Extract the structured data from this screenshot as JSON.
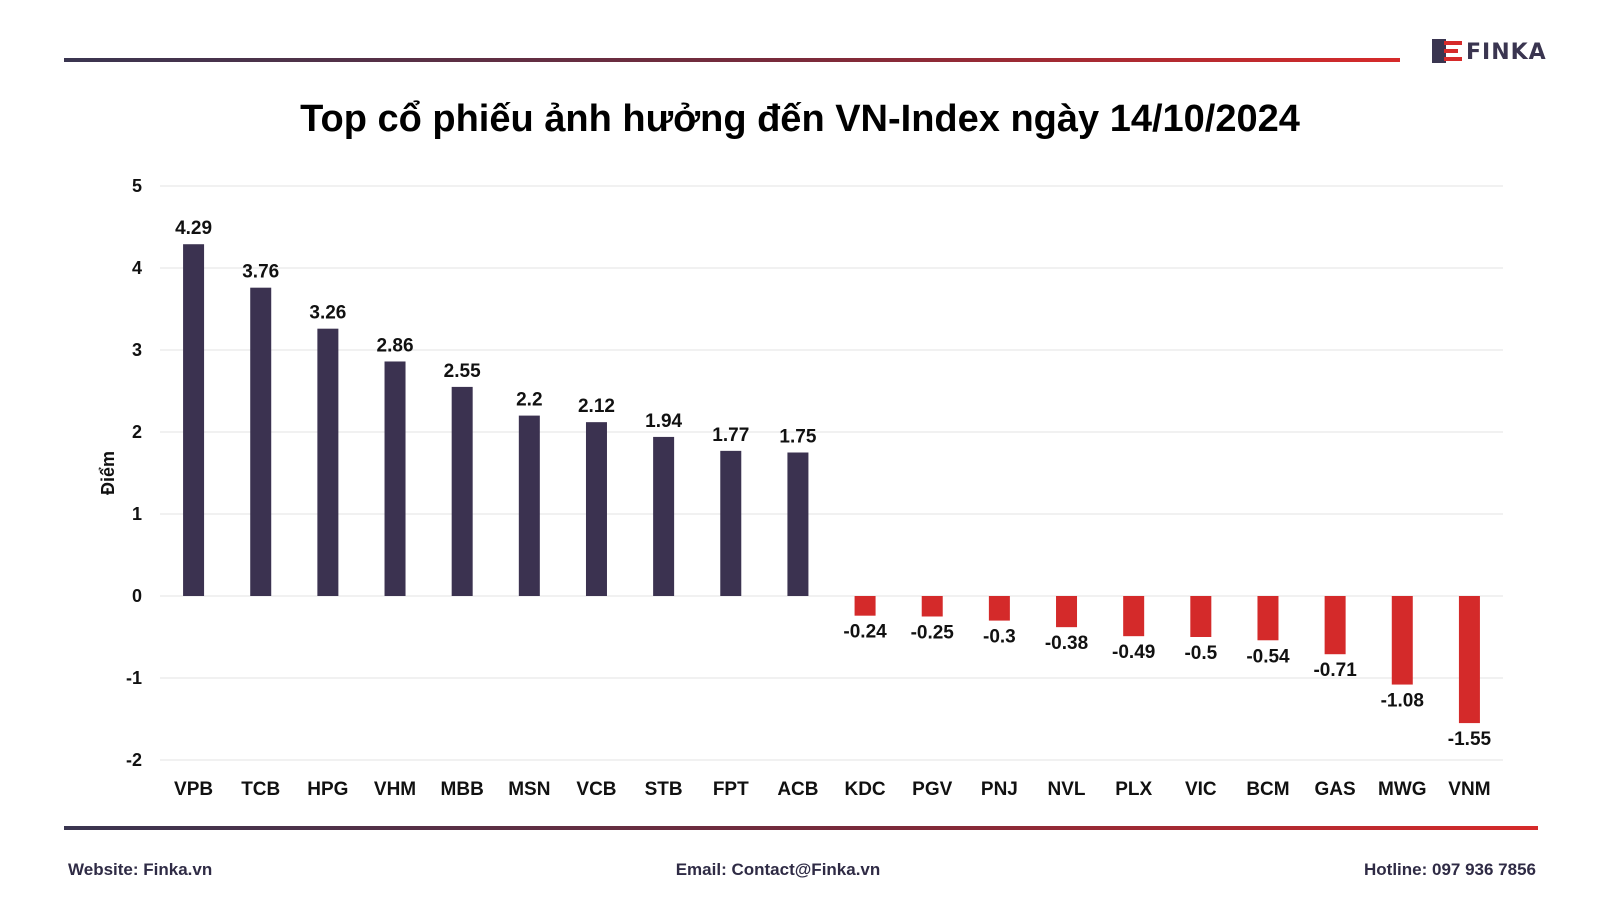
{
  "brand": {
    "name": "FINKA"
  },
  "title": "Top cổ phiếu ảnh hưởng đến VN-Index ngày 14/10/2024",
  "footer": {
    "website": "Website: Finka.vn",
    "email": "Email: Contact@Finka.vn",
    "hotline": "Hotline: 097 936 7856"
  },
  "colors": {
    "positive": "#3b3250",
    "negative": "#d42a2a",
    "brand_dark": "#3a3550",
    "brand_red": "#d62a2a"
  },
  "chart_data": {
    "type": "bar",
    "ylabel": "Điểm",
    "ylim": [
      -2,
      5
    ],
    "yticks": [
      5,
      4,
      3,
      2,
      1,
      0,
      -1,
      -2
    ],
    "grid": true,
    "categories": [
      "VPB",
      "TCB",
      "HPG",
      "VHM",
      "MBB",
      "MSN",
      "VCB",
      "STB",
      "FPT",
      "ACB",
      "KDC",
      "PGV",
      "PNJ",
      "NVL",
      "PLX",
      "VIC",
      "BCM",
      "GAS",
      "MWG",
      "VNM"
    ],
    "values": [
      4.29,
      3.76,
      3.26,
      2.86,
      2.55,
      2.2,
      2.12,
      1.94,
      1.77,
      1.75,
      -0.24,
      -0.25,
      -0.3,
      -0.38,
      -0.49,
      -0.5,
      -0.54,
      -0.71,
      -1.08,
      -1.55
    ]
  }
}
